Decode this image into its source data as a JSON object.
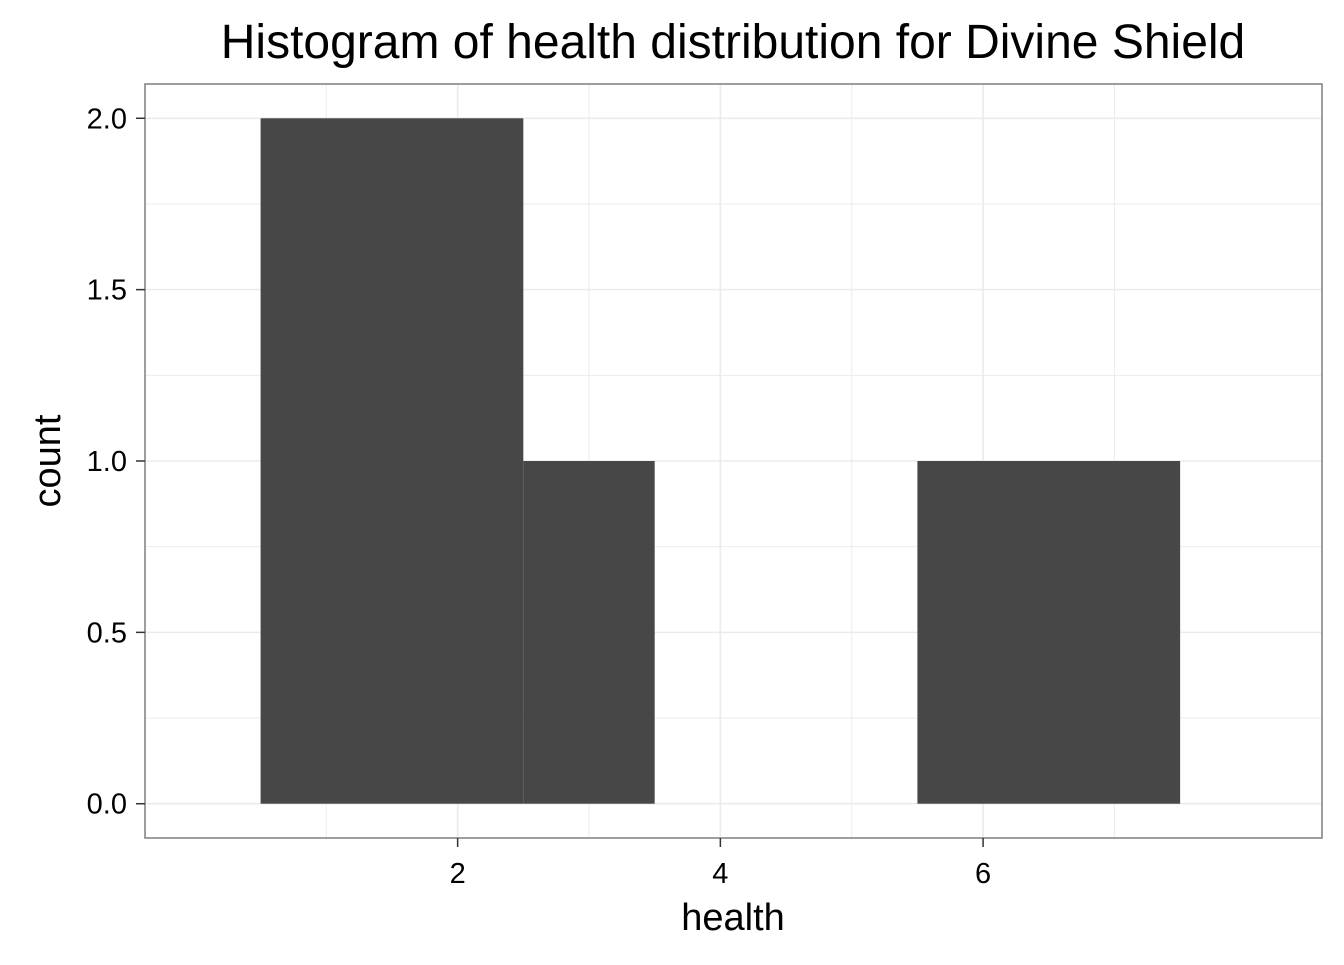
{
  "chart_data": {
    "type": "bar",
    "title": "Histogram of health distribution for Divine Shield",
    "xlabel": "health",
    "ylabel": "count",
    "bins": [
      {
        "x_start": 0.5,
        "x_end": 2.5,
        "count": 2
      },
      {
        "x_start": 2.5,
        "x_end": 3.5,
        "count": 1
      },
      {
        "x_start": 3.5,
        "x_end": 5.5,
        "count": 0
      },
      {
        "x_start": 5.5,
        "x_end": 7.5,
        "count": 1
      }
    ],
    "xlim": [
      -0.38,
      8.58
    ],
    "ylim": [
      -0.1,
      2.1
    ],
    "x_ticks": [
      2,
      4,
      6
    ],
    "x_tick_labels": [
      "2",
      "4",
      "6"
    ],
    "y_ticks": [
      0,
      0.5,
      1,
      1.5,
      2
    ],
    "y_tick_labels": [
      "0.0",
      "0.5",
      "1.0",
      "1.5",
      "2.0"
    ],
    "grid": true,
    "bar_color": "#474747",
    "grid_color": "#ebebeb",
    "panel_border_color": "#7f7f7f"
  }
}
